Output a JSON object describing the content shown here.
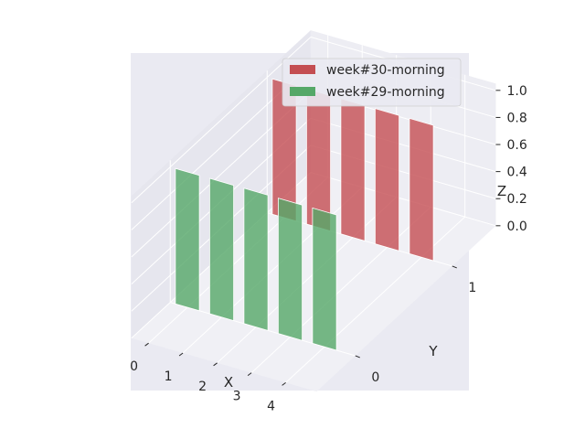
{
  "chart_data": {
    "type": "bar",
    "projection": "3d",
    "title": "",
    "xlabel": "X",
    "ylabel": "Y",
    "zlabel": "Z",
    "x_ticks": [
      "0",
      "1",
      "2",
      "3",
      "4"
    ],
    "y_ticks": [
      "0",
      "1"
    ],
    "z_ticks": [
      "0.0",
      "0.2",
      "0.4",
      "0.6",
      "0.8",
      "1.0"
    ],
    "zlim": [
      0,
      1
    ],
    "grid": true,
    "legend_position": "top-right",
    "series": [
      {
        "name": "week#30-morning",
        "y": 1,
        "x": [
          0,
          1,
          2,
          3,
          4
        ],
        "values": [
          1,
          1,
          1,
          1,
          1
        ],
        "color": "#c44e52"
      },
      {
        "name": "week#29-morning",
        "y": 0,
        "x": [
          0,
          1,
          2,
          3,
          4
        ],
        "values": [
          1,
          1,
          1,
          1,
          1
        ],
        "color": "#55a868"
      }
    ],
    "colors": {
      "background": "#eaeaf2",
      "pane_left": "#e6e6ee",
      "pane_right": "#ededf3",
      "floor": "#f0f0f5",
      "grid": "#ffffff"
    }
  }
}
